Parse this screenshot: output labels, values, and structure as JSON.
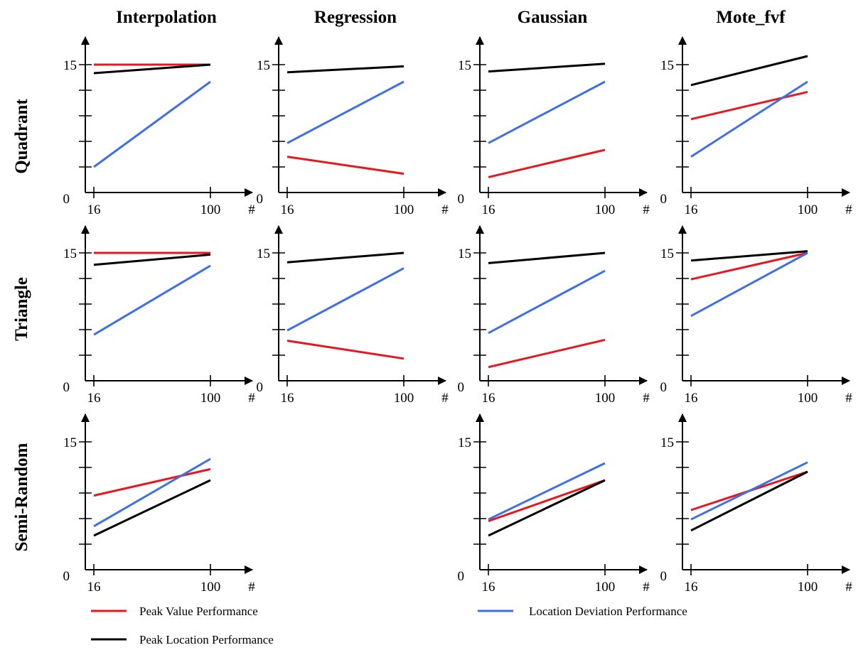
{
  "columns": [
    "Interpolation",
    "Regression",
    "Gaussian",
    "Mote_fvf"
  ],
  "rows": [
    "Quadrant",
    "Triangle",
    "Semi-Random"
  ],
  "axis": {
    "y_top_label": "15",
    "y_zero_label": "0",
    "x_start_label": "16",
    "x_end_label": "100",
    "x_unit_label": "#"
  },
  "legend": [
    {
      "key": "pv",
      "label": "Peak Value Performance",
      "color": "#e8171f"
    },
    {
      "key": "pl",
      "label": "Peak Location Performance",
      "color": "#000000"
    },
    {
      "key": "ld",
      "label": "Location Deviation Performance",
      "color": "#3f6fe6"
    }
  ],
  "chart_data": {
    "type": "line",
    "x": [
      16,
      100
    ],
    "ylim": [
      0,
      15
    ],
    "legend_position": "bottom",
    "panels": [
      {
        "row": "Quadrant",
        "column": "Interpolation",
        "series": [
          {
            "name": "Peak Value Performance",
            "values": [
              15,
              15
            ]
          },
          {
            "name": "Peak Location Performance",
            "values": [
              14,
              15
            ]
          },
          {
            "name": "Location Deviation Performance",
            "values": [
              3,
              13
            ]
          }
        ]
      },
      {
        "row": "Quadrant",
        "column": "Regression",
        "series": [
          {
            "name": "Peak Value Performance",
            "values": [
              4.2,
              2.2
            ]
          },
          {
            "name": "Peak Location Performance",
            "values": [
              14.1,
              14.8
            ]
          },
          {
            "name": "Location Deviation Performance",
            "values": [
              5.8,
              13
            ]
          }
        ]
      },
      {
        "row": "Quadrant",
        "column": "Gaussian",
        "series": [
          {
            "name": "Peak Value Performance",
            "values": [
              1.8,
              5
            ]
          },
          {
            "name": "Peak Location Performance",
            "values": [
              14.2,
              15.1
            ]
          },
          {
            "name": "Location Deviation Performance",
            "values": [
              5.8,
              13
            ]
          }
        ]
      },
      {
        "row": "Quadrant",
        "column": "Mote_fvf",
        "series": [
          {
            "name": "Peak Value Performance",
            "values": [
              8.6,
              11.8
            ]
          },
          {
            "name": "Peak Location Performance",
            "values": [
              12.6,
              16
            ]
          },
          {
            "name": "Location Deviation Performance",
            "values": [
              4.2,
              13
            ]
          }
        ]
      },
      {
        "row": "Triangle",
        "column": "Interpolation",
        "series": [
          {
            "name": "Peak Value Performance",
            "values": [
              15,
              15
            ]
          },
          {
            "name": "Peak Location Performance",
            "values": [
              13.6,
              14.8
            ]
          },
          {
            "name": "Location Deviation Performance",
            "values": [
              5.4,
              13.5
            ]
          }
        ]
      },
      {
        "row": "Triangle",
        "column": "Regression",
        "series": [
          {
            "name": "Peak Value Performance",
            "values": [
              4.7,
              2.6
            ]
          },
          {
            "name": "Peak Location Performance",
            "values": [
              13.9,
              15
            ]
          },
          {
            "name": "Location Deviation Performance",
            "values": [
              5.9,
              13.2
            ]
          }
        ]
      },
      {
        "row": "Triangle",
        "column": "Gaussian",
        "series": [
          {
            "name": "Peak Value Performance",
            "values": [
              1.6,
              4.8
            ]
          },
          {
            "name": "Peak Location Performance",
            "values": [
              13.8,
              15
            ]
          },
          {
            "name": "Location Deviation Performance",
            "values": [
              5.6,
              12.9
            ]
          }
        ]
      },
      {
        "row": "Triangle",
        "column": "Mote_fvf",
        "series": [
          {
            "name": "Peak Value Performance",
            "values": [
              11.9,
              15
            ]
          },
          {
            "name": "Peak Location Performance",
            "values": [
              14.1,
              15.2
            ]
          },
          {
            "name": "Location Deviation Performance",
            "values": [
              7.6,
              15
            ]
          }
        ]
      },
      {
        "row": "Semi-Random",
        "column": "Interpolation",
        "series": [
          {
            "name": "Peak Value Performance",
            "values": [
              8.7,
              11.8
            ]
          },
          {
            "name": "Peak Location Performance",
            "values": [
              4,
              10.5
            ]
          },
          {
            "name": "Location Deviation Performance",
            "values": [
              5.1,
              13
            ]
          }
        ]
      },
      {
        "row": "Semi-Random",
        "column": "Gaussian",
        "series": [
          {
            "name": "Peak Value Performance",
            "values": [
              5.7,
              10.5
            ]
          },
          {
            "name": "Peak Location Performance",
            "values": [
              4,
              10.5
            ]
          },
          {
            "name": "Location Deviation Performance",
            "values": [
              5.9,
              12.5
            ]
          }
        ]
      },
      {
        "row": "Semi-Random",
        "column": "Mote_fvf",
        "series": [
          {
            "name": "Peak Value Performance",
            "values": [
              7,
              11.5
            ]
          },
          {
            "name": "Peak Location Performance",
            "values": [
              4.6,
              11.5
            ]
          },
          {
            "name": "Location Deviation Performance",
            "values": [
              5.9,
              12.6
            ]
          }
        ]
      }
    ]
  }
}
